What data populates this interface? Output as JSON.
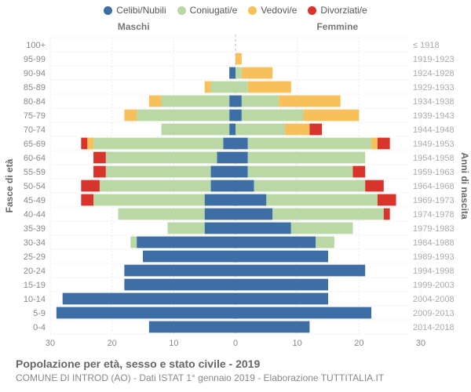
{
  "legend": [
    {
      "label": "Celibi/Nubili",
      "color": "#3d6fa5"
    },
    {
      "label": "Coniugati/e",
      "color": "#b9d8a5"
    },
    {
      "label": "Vedovi/e",
      "color": "#f8c05a"
    },
    {
      "label": "Divorziati/e",
      "color": "#d8342c"
    }
  ],
  "titles": {
    "male": "Maschi",
    "female": "Femmine",
    "left_axis": "Fasce di età",
    "right_axis": "Anni di nascita",
    "main": "Popolazione per età, sesso e stato civile - 2019",
    "sub": "COMUNE DI INTROD (AO) - Dati ISTAT 1° gennaio 2019 - Elaborazione TUTTITALIA.IT"
  },
  "chart": {
    "type": "population-pyramid",
    "x_max": 30,
    "x_ticks": [
      0,
      10,
      20,
      30
    ],
    "bar_height_ratio": 0.82,
    "colors": {
      "celibi": "#3d6fa5",
      "coniugati": "#b9d8a5",
      "vedovi": "#f8c05a",
      "divorziati": "#d8342c",
      "grid": "#eee",
      "center": "#bbb"
    },
    "rows": [
      {
        "age": "0-4",
        "birth": "2014-2018",
        "m": [
          14,
          0,
          0,
          0
        ],
        "f": [
          12,
          0,
          0,
          0
        ]
      },
      {
        "age": "5-9",
        "birth": "2009-2013",
        "m": [
          29,
          0,
          0,
          0
        ],
        "f": [
          22,
          0,
          0,
          0
        ]
      },
      {
        "age": "10-14",
        "birth": "2004-2008",
        "m": [
          28,
          0,
          0,
          0
        ],
        "f": [
          15,
          0,
          0,
          0
        ]
      },
      {
        "age": "15-19",
        "birth": "1999-2003",
        "m": [
          18,
          0,
          0,
          0
        ],
        "f": [
          15,
          0,
          0,
          0
        ]
      },
      {
        "age": "20-24",
        "birth": "1994-1998",
        "m": [
          18,
          0,
          0,
          0
        ],
        "f": [
          21,
          0,
          0,
          0
        ]
      },
      {
        "age": "25-29",
        "birth": "1989-1993",
        "m": [
          15,
          0,
          0,
          0
        ],
        "f": [
          15,
          0,
          0,
          0
        ]
      },
      {
        "age": "30-34",
        "birth": "1984-1988",
        "m": [
          16,
          1,
          0,
          0
        ],
        "f": [
          13,
          3,
          0,
          0
        ]
      },
      {
        "age": "35-39",
        "birth": "1979-1983",
        "m": [
          5,
          6,
          0,
          0
        ],
        "f": [
          9,
          10,
          0,
          0
        ]
      },
      {
        "age": "40-44",
        "birth": "1974-1978",
        "m": [
          5,
          14,
          0,
          0
        ],
        "f": [
          6,
          18,
          0,
          1
        ]
      },
      {
        "age": "45-49",
        "birth": "1969-1973",
        "m": [
          5,
          18,
          0,
          2
        ],
        "f": [
          5,
          18,
          0,
          3
        ]
      },
      {
        "age": "50-54",
        "birth": "1964-1968",
        "m": [
          4,
          18,
          0,
          3
        ],
        "f": [
          3,
          18,
          0,
          3
        ]
      },
      {
        "age": "55-59",
        "birth": "1959-1963",
        "m": [
          4,
          17,
          0,
          2
        ],
        "f": [
          2,
          17,
          0,
          2
        ]
      },
      {
        "age": "60-64",
        "birth": "1954-1958",
        "m": [
          3,
          18,
          0,
          2
        ],
        "f": [
          2,
          19,
          0,
          0
        ]
      },
      {
        "age": "65-69",
        "birth": "1949-1953",
        "m": [
          2,
          21,
          1,
          1
        ],
        "f": [
          2,
          20,
          1,
          2
        ]
      },
      {
        "age": "70-74",
        "birth": "1944-1948",
        "m": [
          1,
          11,
          0,
          0
        ],
        "f": [
          0,
          8,
          4,
          2
        ]
      },
      {
        "age": "75-79",
        "birth": "1939-1943",
        "m": [
          1,
          15,
          2,
          0
        ],
        "f": [
          1,
          10,
          9,
          0
        ]
      },
      {
        "age": "80-84",
        "birth": "1934-1938",
        "m": [
          1,
          11,
          2,
          0
        ],
        "f": [
          1,
          6,
          10,
          0
        ]
      },
      {
        "age": "85-89",
        "birth": "1929-1933",
        "m": [
          0,
          4,
          1,
          0
        ],
        "f": [
          0,
          2,
          7,
          0
        ]
      },
      {
        "age": "90-94",
        "birth": "1924-1928",
        "m": [
          1,
          0,
          0,
          0
        ],
        "f": [
          0,
          1,
          5,
          0
        ]
      },
      {
        "age": "95-99",
        "birth": "1919-1923",
        "m": [
          0,
          0,
          0,
          0
        ],
        "f": [
          0,
          0,
          1,
          0
        ]
      },
      {
        "age": "100+",
        "birth": "≤ 1918",
        "m": [
          0,
          0,
          0,
          0
        ],
        "f": [
          0,
          0,
          0,
          0
        ]
      }
    ]
  }
}
